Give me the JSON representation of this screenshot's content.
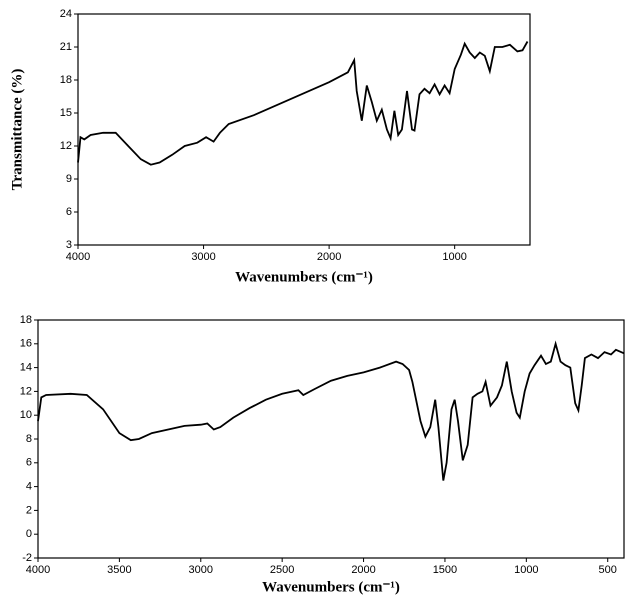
{
  "chart_data": [
    {
      "type": "line",
      "x_label": "Wavenumbers (cm⁻¹)",
      "y_label": "Transmittance (%)",
      "color": "#000000",
      "xlim": [
        4000,
        400
      ],
      "xticks": [
        4000,
        3000,
        2000,
        1000
      ],
      "ylim": [
        3,
        24
      ],
      "yticks": [
        3,
        6,
        9,
        12,
        15,
        18,
        21,
        24
      ],
      "x": [
        4000,
        3980,
        3950,
        3900,
        3800,
        3700,
        3600,
        3500,
        3420,
        3350,
        3250,
        3150,
        3050,
        2980,
        2920,
        2870,
        2800,
        2600,
        2400,
        2200,
        2000,
        1850,
        1800,
        1780,
        1740,
        1700,
        1660,
        1620,
        1580,
        1540,
        1510,
        1480,
        1450,
        1420,
        1380,
        1340,
        1320,
        1280,
        1240,
        1200,
        1160,
        1120,
        1080,
        1040,
        1000,
        950,
        920,
        880,
        840,
        800,
        760,
        720,
        680,
        620,
        560,
        500,
        460,
        420
      ],
      "values": [
        10.5,
        12.8,
        12.6,
        13,
        13.2,
        13.2,
        12,
        10.8,
        10.3,
        10.5,
        11.2,
        12,
        12.3,
        12.8,
        12.4,
        13.2,
        14,
        14.8,
        15.8,
        16.8,
        17.8,
        18.7,
        19.8,
        17,
        14.3,
        17.5,
        16,
        14.3,
        15.3,
        13.5,
        12.7,
        15.2,
        13,
        13.5,
        17,
        13.5,
        13.4,
        16.7,
        17.2,
        16.8,
        17.6,
        16.7,
        17.5,
        16.8,
        19,
        20.3,
        21.3,
        20.5,
        20,
        20.5,
        20.2,
        18.8,
        21,
        21,
        21.2,
        20.6,
        20.7,
        21.5
      ]
    },
    {
      "type": "line",
      "x_label": "Wavenumbers (cm⁻¹)",
      "color": "#000000",
      "xlim": [
        4000,
        400
      ],
      "xticks": [
        4000,
        3500,
        3000,
        2500,
        2000,
        1500,
        1000,
        500
      ],
      "ylim": [
        -2,
        18
      ],
      "yticks": [
        -2,
        0,
        2,
        4,
        6,
        8,
        10,
        12,
        14,
        16,
        18
      ],
      "x": [
        4000,
        3980,
        3950,
        3800,
        3700,
        3600,
        3500,
        3430,
        3380,
        3300,
        3200,
        3100,
        3000,
        2960,
        2920,
        2880,
        2800,
        2700,
        2600,
        2500,
        2400,
        2370,
        2300,
        2200,
        2100,
        2000,
        1900,
        1800,
        1760,
        1720,
        1700,
        1650,
        1620,
        1590,
        1560,
        1540,
        1510,
        1490,
        1460,
        1440,
        1420,
        1390,
        1360,
        1330,
        1300,
        1270,
        1250,
        1220,
        1180,
        1150,
        1120,
        1090,
        1060,
        1040,
        1010,
        980,
        950,
        910,
        880,
        850,
        820,
        790,
        760,
        730,
        700,
        680,
        660,
        640,
        600,
        560,
        520,
        480,
        450,
        400
      ],
      "values": [
        9.5,
        11.5,
        11.7,
        11.8,
        11.7,
        10.5,
        8.5,
        7.9,
        8,
        8.5,
        8.8,
        9.1,
        9.2,
        9.3,
        8.8,
        9,
        9.8,
        10.6,
        11.3,
        11.8,
        12.1,
        11.7,
        12.2,
        12.9,
        13.3,
        13.6,
        14,
        14.5,
        14.3,
        13.8,
        12.8,
        9.5,
        8.2,
        9,
        11.3,
        9,
        4.5,
        6,
        10.5,
        11.3,
        9.5,
        6.2,
        7.5,
        11.5,
        11.8,
        12,
        12.8,
        10.8,
        11.5,
        12.5,
        14.5,
        12,
        10.2,
        9.8,
        12,
        13.5,
        14.2,
        15,
        14.3,
        14.5,
        16,
        14.5,
        14.2,
        14,
        11,
        10.4,
        12.5,
        14.8,
        15.1,
        14.8,
        15.3,
        15.1,
        15.5,
        15.2
      ]
    }
  ]
}
